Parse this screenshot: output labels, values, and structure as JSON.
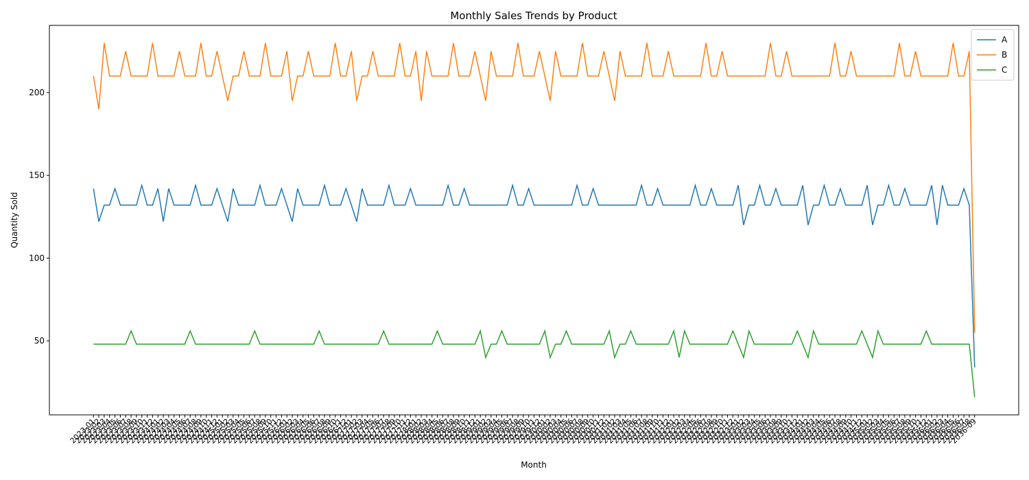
{
  "chart_data": {
    "type": "line",
    "title": "Monthly Sales Trends by Product",
    "xlabel": "Month",
    "ylabel": "Quantity Sold",
    "categories": [
      "2023-01",
      "2023-02",
      "2023-03",
      "2023-04",
      "2023-05",
      "2023-06",
      "2023-07",
      "2023-08",
      "2023-09",
      "2023-10",
      "2023-11",
      "2023-12",
      "2024-01",
      "2024-02",
      "2024-03",
      "2024-04",
      "2024-05",
      "2024-06",
      "2024-07",
      "2024-08",
      "2024-09",
      "2024-10",
      "2024-11",
      "2024-12",
      "2025-01",
      "2025-02",
      "2025-03",
      "2025-04",
      "2025-05",
      "2025-06",
      "2025-07",
      "2025-08",
      "2025-09",
      "2025-10",
      "2025-11",
      "2025-12",
      "2026-01",
      "2026-02",
      "2026-03",
      "2026-04",
      "2026-05",
      "2026-06",
      "2026-07",
      "2026-08",
      "2026-09",
      "2026-10",
      "2026-11",
      "2026-12",
      "2027-01",
      "2027-02",
      "2027-03",
      "2027-04",
      "2027-05",
      "2027-06",
      "2027-07",
      "2027-08",
      "2027-09",
      "2027-10",
      "2027-11",
      "2027-12",
      "2028-01",
      "2028-02",
      "2028-03",
      "2028-04",
      "2028-05",
      "2028-06",
      "2028-07",
      "2028-08",
      "2028-09",
      "2028-10",
      "2028-11",
      "2028-12",
      "2029-01",
      "2029-02",
      "2029-03",
      "2029-04",
      "2029-05",
      "2029-06",
      "2029-07",
      "2029-08",
      "2029-09",
      "2029-10",
      "2029-11",
      "2029-12",
      "2030-01",
      "2030-02",
      "2030-03",
      "2030-04",
      "2030-05",
      "2030-06",
      "2030-07",
      "2030-08",
      "2030-09",
      "2030-10",
      "2030-11",
      "2030-12",
      "2031-01",
      "2031-02",
      "2031-03",
      "2031-04",
      "2031-05",
      "2031-06",
      "2031-07",
      "2031-08",
      "2031-09",
      "2031-10",
      "2031-11",
      "2031-12",
      "2032-01",
      "2032-02",
      "2032-03",
      "2032-04",
      "2032-05",
      "2032-06",
      "2032-07",
      "2032-08",
      "2032-09",
      "2032-10",
      "2032-11",
      "2032-12",
      "2033-01",
      "2033-02",
      "2033-03",
      "2033-04",
      "2033-05",
      "2033-06",
      "2033-07",
      "2033-08",
      "2033-09",
      "2033-10",
      "2033-11",
      "2033-12",
      "2034-01",
      "2034-02",
      "2034-03",
      "2034-04",
      "2034-05",
      "2034-06",
      "2034-07",
      "2034-08",
      "2034-09",
      "2034-10",
      "2034-11",
      "2034-12",
      "2035-01",
      "2035-02",
      "2035-03",
      "2035-04",
      "2035-05",
      "2035-06",
      "2035-07",
      "2035-08",
      "2035-09",
      "2035-10",
      "2035-11",
      "2035-12",
      "2036-01",
      "2036-02",
      "2036-03",
      "2036-04",
      "2036-05",
      "2036-06",
      "2036-07",
      "2036-08",
      "2036-09"
    ],
    "series": [
      {
        "name": "A",
        "color": "#1f77b4",
        "values": [
          142,
          122,
          132,
          132,
          142,
          132,
          132,
          132,
          132,
          144,
          132,
          132,
          142,
          122,
          142,
          132,
          132,
          132,
          132,
          144,
          132,
          132,
          132,
          142,
          132,
          122,
          142,
          132,
          132,
          132,
          132,
          144,
          132,
          132,
          132,
          142,
          132,
          122,
          142,
          132,
          132,
          132,
          132,
          144,
          132,
          132,
          132,
          142,
          132,
          122,
          142,
          132,
          132,
          132,
          132,
          144,
          132,
          132,
          132,
          142,
          132,
          132,
          132,
          132,
          132,
          132,
          144,
          132,
          132,
          142,
          132,
          132,
          132,
          132,
          132,
          132,
          132,
          132,
          144,
          132,
          132,
          142,
          132,
          132,
          132,
          132,
          132,
          132,
          132,
          132,
          144,
          132,
          132,
          142,
          132,
          132,
          132,
          132,
          132,
          132,
          132,
          132,
          144,
          132,
          132,
          142,
          132,
          132,
          132,
          132,
          132,
          132,
          144,
          132,
          132,
          142,
          132,
          132,
          132,
          132,
          144,
          120,
          132,
          132,
          144,
          132,
          132,
          142,
          132,
          132,
          132,
          132,
          144,
          120,
          132,
          132,
          144,
          132,
          132,
          142,
          132,
          132,
          132,
          132,
          144,
          120,
          132,
          132,
          144,
          132,
          132,
          142,
          132,
          132,
          132,
          132,
          144,
          120,
          144,
          132,
          132,
          132,
          142,
          132,
          34
        ]
      },
      {
        "name": "B",
        "color": "#ff7f0e",
        "values": [
          210,
          190,
          230,
          210,
          210,
          210,
          225,
          210,
          210,
          210,
          210,
          230,
          210,
          210,
          210,
          210,
          225,
          210,
          210,
          210,
          230,
          210,
          210,
          225,
          210,
          195,
          210,
          210,
          225,
          210,
          210,
          210,
          230,
          210,
          210,
          210,
          225,
          195,
          210,
          210,
          225,
          210,
          210,
          210,
          210,
          230,
          210,
          210,
          225,
          195,
          210,
          210,
          225,
          210,
          210,
          210,
          210,
          230,
          210,
          210,
          225,
          195,
          225,
          210,
          210,
          210,
          210,
          230,
          210,
          210,
          210,
          225,
          210,
          195,
          225,
          210,
          210,
          210,
          210,
          230,
          210,
          210,
          210,
          225,
          210,
          195,
          225,
          210,
          210,
          210,
          210,
          230,
          210,
          210,
          210,
          225,
          210,
          195,
          225,
          210,
          210,
          210,
          210,
          230,
          210,
          210,
          210,
          225,
          210,
          210,
          210,
          210,
          210,
          210,
          230,
          210,
          210,
          225,
          210,
          210,
          210,
          210,
          210,
          210,
          210,
          210,
          230,
          210,
          210,
          225,
          210,
          210,
          210,
          210,
          210,
          210,
          210,
          210,
          230,
          210,
          210,
          225,
          210,
          210,
          210,
          210,
          210,
          210,
          210,
          210,
          230,
          210,
          210,
          225,
          210,
          210,
          210,
          210,
          210,
          210,
          230,
          210,
          210,
          225,
          55
        ]
      },
      {
        "name": "C",
        "color": "#2ca02c",
        "values": [
          48,
          48,
          48,
          48,
          48,
          48,
          48,
          56,
          48,
          48,
          48,
          48,
          48,
          48,
          48,
          48,
          48,
          48,
          56,
          48,
          48,
          48,
          48,
          48,
          48,
          48,
          48,
          48,
          48,
          48,
          56,
          48,
          48,
          48,
          48,
          48,
          48,
          48,
          48,
          48,
          48,
          48,
          56,
          48,
          48,
          48,
          48,
          48,
          48,
          48,
          48,
          48,
          48,
          48,
          56,
          48,
          48,
          48,
          48,
          48,
          48,
          48,
          48,
          48,
          56,
          48,
          48,
          48,
          48,
          48,
          48,
          48,
          56,
          40,
          48,
          48,
          56,
          48,
          48,
          48,
          48,
          48,
          48,
          48,
          56,
          40,
          48,
          48,
          56,
          48,
          48,
          48,
          48,
          48,
          48,
          48,
          56,
          40,
          48,
          48,
          56,
          48,
          48,
          48,
          48,
          48,
          48,
          48,
          56,
          40,
          56,
          48,
          48,
          48,
          48,
          48,
          48,
          48,
          48,
          56,
          48,
          40,
          56,
          48,
          48,
          48,
          48,
          48,
          48,
          48,
          48,
          56,
          48,
          40,
          56,
          48,
          48,
          48,
          48,
          48,
          48,
          48,
          48,
          56,
          48,
          40,
          56,
          48,
          48,
          48,
          48,
          48,
          48,
          48,
          48,
          56,
          48,
          48,
          48,
          48,
          48,
          48,
          48,
          48,
          16
        ]
      }
    ],
    "ylim": [
      5.3,
      240.6
    ],
    "yticks": [
      50,
      100,
      150,
      200
    ],
    "legend": "upper right",
    "grid": false
  }
}
